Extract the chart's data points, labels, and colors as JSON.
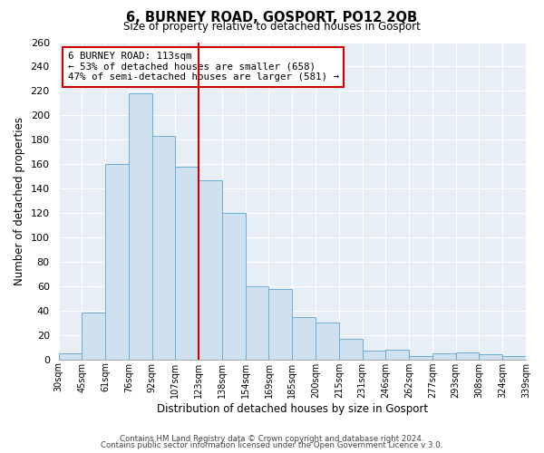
{
  "title": "6, BURNEY ROAD, GOSPORT, PO12 2QB",
  "subtitle": "Size of property relative to detached houses in Gosport",
  "xlabel": "Distribution of detached houses by size in Gosport",
  "ylabel": "Number of detached properties",
  "bar_labels": [
    "30sqm",
    "45sqm",
    "61sqm",
    "76sqm",
    "92sqm",
    "107sqm",
    "123sqm",
    "138sqm",
    "154sqm",
    "169sqm",
    "185sqm",
    "200sqm",
    "215sqm",
    "231sqm",
    "246sqm",
    "262sqm",
    "277sqm",
    "293sqm",
    "308sqm",
    "324sqm",
    "339sqm"
  ],
  "bar_values": [
    5,
    38,
    160,
    218,
    183,
    158,
    147,
    120,
    60,
    58,
    35,
    30,
    17,
    7,
    8,
    3,
    5,
    6,
    4,
    3
  ],
  "bar_color": "#cfe0ef",
  "bar_edge_color": "#6aadd5",
  "vline_after_bar": 5,
  "vline_color": "#cc0000",
  "annotation_title": "6 BURNEY ROAD: 113sqm",
  "annotation_line1": "← 53% of detached houses are smaller (658)",
  "annotation_line2": "47% of semi-detached houses are larger (581) →",
  "annotation_box_edge": "#cc0000",
  "annotation_box_fill": "#ffffff",
  "ylim": [
    0,
    260
  ],
  "yticks": [
    0,
    20,
    40,
    60,
    80,
    100,
    120,
    140,
    160,
    180,
    200,
    220,
    240,
    260
  ],
  "bg_color": "#e8eef5",
  "footer1": "Contains HM Land Registry data © Crown copyright and database right 2024.",
  "footer2": "Contains public sector information licensed under the Open Government Licence v 3.0."
}
